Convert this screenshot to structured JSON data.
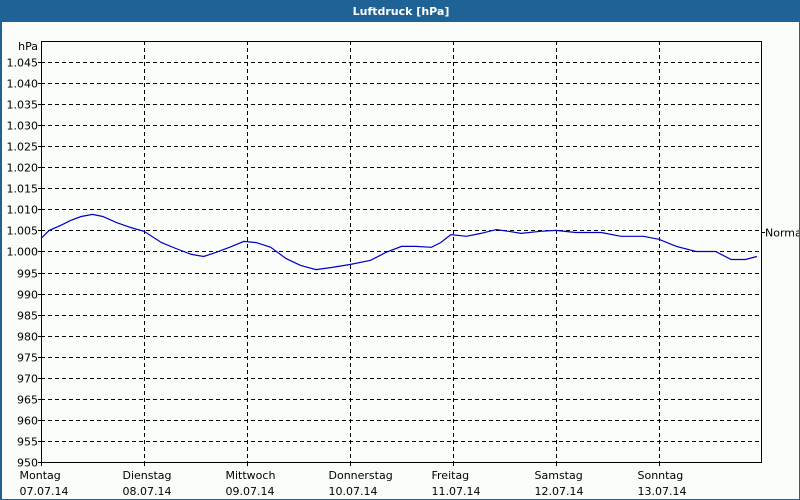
{
  "window": {
    "title": "Luftdruck [hPa]"
  },
  "chart_data": {
    "type": "line",
    "title": "Luftdruck [hPa]",
    "xlabel": "",
    "ylabel": "hPa",
    "ylim": [
      950,
      1045
    ],
    "y_ticks": [
      950,
      955,
      960,
      965,
      970,
      975,
      980,
      985,
      990,
      995,
      1000,
      1005,
      1010,
      1015,
      1020,
      1025,
      1030,
      1035,
      1040,
      1045
    ],
    "y_tick_labels": [
      "950",
      "955",
      "960",
      "965",
      "970",
      "975",
      "980",
      "985",
      "990",
      "995",
      "1.000",
      "1.005",
      "1.010",
      "1.015",
      "1.020",
      "1.025",
      "1.030",
      "1.035",
      "1.040",
      "1.045"
    ],
    "grid": true,
    "legend": null,
    "reference_line": {
      "label": "Normal",
      "value": 1004.6
    },
    "categories": [
      {
        "day": "Montag",
        "date": "07.07.14"
      },
      {
        "day": "Dienstag",
        "date": "08.07.14"
      },
      {
        "day": "Mittwoch",
        "date": "09.07.14"
      },
      {
        "day": "Donnerstag",
        "date": "10.07.14"
      },
      {
        "day": "Freitag",
        "date": "11.07.14"
      },
      {
        "day": "Samstag",
        "date": "12.07.14"
      },
      {
        "day": "Sonntag",
        "date": "13.07.14"
      }
    ],
    "x_unit": "days since 07.07.14 00:00",
    "series": [
      {
        "name": "Luftdruck",
        "color": "#0000c0",
        "points": [
          [
            0.0,
            1003.1
          ],
          [
            0.08,
            1005.0
          ],
          [
            0.19,
            1006.2
          ],
          [
            0.29,
            1007.4
          ],
          [
            0.39,
            1008.3
          ],
          [
            0.5,
            1008.8
          ],
          [
            0.6,
            1008.3
          ],
          [
            0.73,
            1006.9
          ],
          [
            0.87,
            1005.7
          ],
          [
            1.0,
            1004.8
          ],
          [
            1.17,
            1002.1
          ],
          [
            1.31,
            1000.7
          ],
          [
            1.46,
            999.3
          ],
          [
            1.58,
            998.8
          ],
          [
            1.7,
            999.8
          ],
          [
            1.83,
            1001.0
          ],
          [
            1.97,
            1002.4
          ],
          [
            2.09,
            1002.1
          ],
          [
            2.23,
            1001.0
          ],
          [
            2.38,
            998.3
          ],
          [
            2.52,
            996.7
          ],
          [
            2.67,
            995.7
          ],
          [
            2.82,
            996.2
          ],
          [
            3.0,
            996.9
          ],
          [
            3.2,
            997.9
          ],
          [
            3.35,
            999.8
          ],
          [
            3.5,
            1001.2
          ],
          [
            3.64,
            1001.2
          ],
          [
            3.79,
            1001.0
          ],
          [
            3.88,
            1002.1
          ],
          [
            3.98,
            1004.0
          ],
          [
            4.13,
            1003.6
          ],
          [
            4.27,
            1004.3
          ],
          [
            4.42,
            1005.2
          ],
          [
            4.54,
            1004.8
          ],
          [
            4.66,
            1004.3
          ],
          [
            4.85,
            1004.8
          ],
          [
            5.0,
            1005.0
          ],
          [
            5.19,
            1004.5
          ],
          [
            5.44,
            1004.5
          ],
          [
            5.63,
            1003.6
          ],
          [
            5.85,
            1003.6
          ],
          [
            6.0,
            1002.9
          ],
          [
            6.17,
            1001.2
          ],
          [
            6.36,
            1000.0
          ],
          [
            6.55,
            1000.0
          ],
          [
            6.7,
            998.1
          ],
          [
            6.84,
            998.1
          ],
          [
            6.95,
            998.8
          ]
        ]
      }
    ]
  }
}
